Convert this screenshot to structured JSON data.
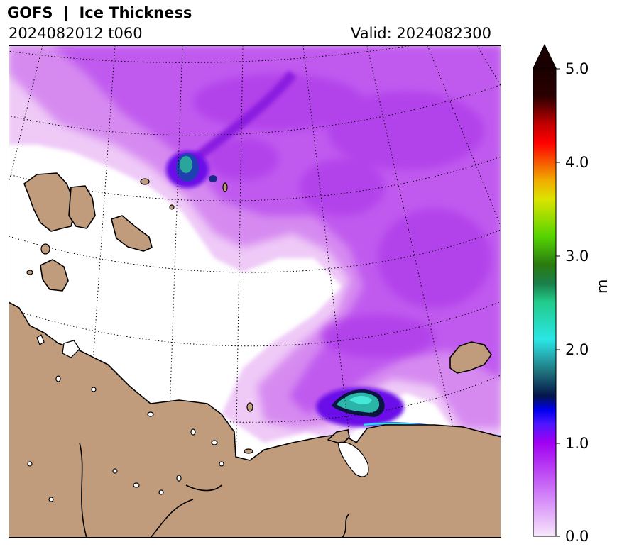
{
  "header": {
    "title": "GOFS  |  Ice Thickness",
    "run": "2024082012 t060",
    "valid": "Valid: 2024082300"
  },
  "map": {
    "land_color": "#c09c7c",
    "coast_color": "#000000",
    "ocean_color": "#ffffff",
    "graticule": "dotted"
  },
  "colorbar": {
    "unit": "m",
    "ticks": [
      "5.0",
      "4.0",
      "3.0",
      "2.0",
      "1.0",
      "0.0"
    ],
    "range": [
      0.0,
      5.0
    ],
    "extend": "max",
    "stops": [
      [
        "0.00",
        "#f7e6fb"
      ],
      [
        "0.20",
        "#a100f2"
      ],
      [
        "0.24",
        "#4d16ff"
      ],
      [
        "0.27",
        "#0000f0"
      ],
      [
        "0.30",
        "#04154a"
      ],
      [
        "0.35",
        "#1f6f7a"
      ],
      [
        "0.42",
        "#2ae6e6"
      ],
      [
        "0.50",
        "#22cc8c"
      ],
      [
        "0.54",
        "#1a7f48"
      ],
      [
        "0.58",
        "#2a7a10"
      ],
      [
        "0.64",
        "#55d400"
      ],
      [
        "0.72",
        "#dce400"
      ],
      [
        "0.76",
        "#f0ac00"
      ],
      [
        "0.84",
        "#ff0000"
      ],
      [
        "0.88",
        "#c20000"
      ],
      [
        "0.94",
        "#2b0000"
      ],
      [
        "1.00",
        "#1a0000"
      ]
    ]
  }
}
